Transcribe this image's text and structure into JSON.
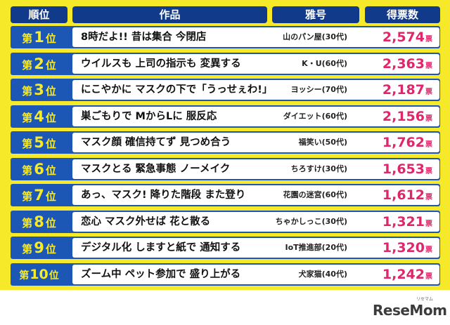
{
  "header": {
    "rank": "順位",
    "work": "作品",
    "pen_name": "雅号",
    "votes": "得票数"
  },
  "rank_prefix": "第",
  "rank_suffix": "位",
  "vote_unit": "票",
  "rows": [
    {
      "rank": "1",
      "work": "8時だよ!! 昔は集合 今閉店",
      "pen": "山のパン屋(30代)",
      "votes": "2,574"
    },
    {
      "rank": "2",
      "work": "ウイルスも 上司の指示も 変異する",
      "pen": "K・U(60代)",
      "votes": "2,363"
    },
    {
      "rank": "3",
      "work": "にこやかに マスクの下で「うっせぇわ!」",
      "pen": "ヨッシー(70代)",
      "votes": "2,187"
    },
    {
      "rank": "4",
      "work": "巣ごもりで MからLに 服反応",
      "pen": "ダイエット(60代)",
      "votes": "2,156"
    },
    {
      "rank": "5",
      "work": "マスク顔 確信持てず 見つめ合う",
      "pen": "福笑い(50代)",
      "votes": "1,762"
    },
    {
      "rank": "6",
      "work": "マスクとる 緊急事態 ノーメイク",
      "pen": "ちろすけ(30代)",
      "votes": "1,653"
    },
    {
      "rank": "7",
      "work": "あっ、マスク! 降りた階段 また登り",
      "pen": "花園の迷宮(60代)",
      "votes": "1,612"
    },
    {
      "rank": "8",
      "work": "恋心 マスク外せば 花と散る",
      "pen": "ちゃかしっこ(30代)",
      "votes": "1,321"
    },
    {
      "rank": "9",
      "work": "デジタル化 しますと紙で 通知する",
      "pen": "IoT推進部(20代)",
      "votes": "1,320"
    },
    {
      "rank": "10",
      "work": "ズーム中 ペット参加で 盛り上がる",
      "pen": "犬家猫(40代)",
      "votes": "1,242"
    }
  ],
  "logo": "ReseMom",
  "logo_sub": "リセマム"
}
